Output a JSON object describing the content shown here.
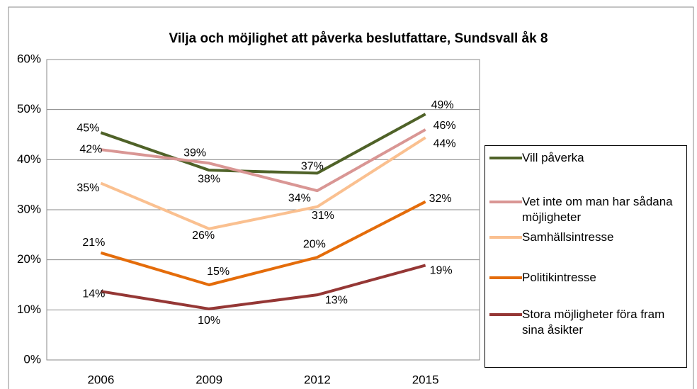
{
  "chart_data": {
    "type": "line",
    "title": "Vilja och möjlighet att påverka beslutfattare, Sundsvall åk 8",
    "categories": [
      "2006",
      "2009",
      "2012",
      "2015"
    ],
    "ylim": [
      0,
      60
    ],
    "yticks": [
      {
        "value": 0,
        "label": "0%"
      },
      {
        "value": 10,
        "label": "10%"
      },
      {
        "value": 20,
        "label": "20%"
      },
      {
        "value": 30,
        "label": "30%"
      },
      {
        "value": 40,
        "label": "40%"
      },
      {
        "value": 50,
        "label": "50%"
      },
      {
        "value": 60,
        "label": "60%"
      }
    ],
    "grid": true,
    "legend": "right",
    "series": [
      {
        "name": "Vill påverka",
        "color": "#4f6228",
        "values": [
          45.4,
          37.9,
          37.3,
          49.1
        ],
        "value_labels": [
          "45%",
          "38%",
          "37%",
          "49%"
        ]
      },
      {
        "name": "Vet inte om man har sådana möjligheter",
        "color": "#d99694",
        "values": [
          42.0,
          39.3,
          33.8,
          46.0
        ],
        "value_labels": [
          "42%",
          "39%",
          "34%",
          "46%"
        ]
      },
      {
        "name": "Samhällsintresse",
        "color": "#fac090",
        "values": [
          35.3,
          26.2,
          30.6,
          44.4
        ],
        "value_labels": [
          "35%",
          "26%",
          "31%",
          "44%"
        ]
      },
      {
        "name": "Politikintresse",
        "color": "#e46c0a",
        "values": [
          21.4,
          15.0,
          20.5,
          31.6
        ],
        "value_labels": [
          "21%",
          "15%",
          "20%",
          "32%"
        ]
      },
      {
        "name": "Stora möjligheter föra fram sina åsikter",
        "color": "#953735",
        "values": [
          13.7,
          10.2,
          13.0,
          18.9
        ],
        "value_labels": [
          "14%",
          "10%",
          "13%",
          "19%"
        ]
      }
    ]
  }
}
